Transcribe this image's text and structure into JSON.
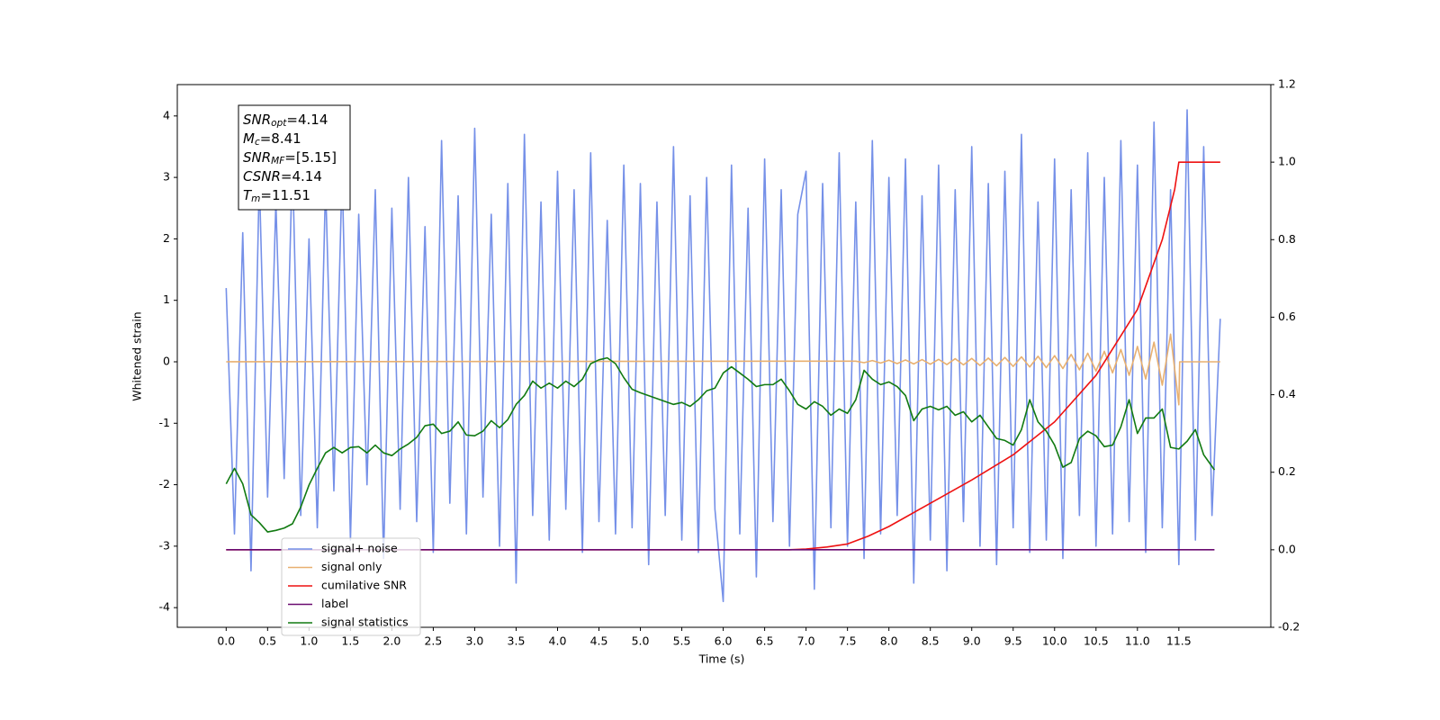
{
  "chart_data": {
    "type": "line",
    "xlabel": "Time (s)",
    "ylabel": "Whitened strain",
    "xlim": [
      -0.59,
      12.61
    ],
    "ylim": [
      -4.32,
      4.51
    ],
    "y2lim": [
      -0.2,
      1.2
    ],
    "xticks": [
      {
        "value": 0,
        "label": "0.0"
      },
      0.5,
      {
        "value": 1,
        "label": "1.0"
      },
      1.5,
      {
        "value": 2,
        "label": "2.0"
      },
      2.5,
      {
        "value": 3,
        "label": "3.0"
      },
      3.5,
      {
        "value": 4,
        "label": "4.0"
      },
      4.5,
      {
        "value": 5,
        "label": "5.0"
      },
      5.5,
      {
        "value": 6,
        "label": "6.0"
      },
      6.5,
      {
        "value": 7,
        "label": "7.0"
      },
      7.5,
      {
        "value": 8,
        "label": "8.0"
      },
      8.5,
      {
        "value": 9,
        "label": "9.0"
      },
      9.5,
      {
        "value": 10,
        "label": "10.0"
      },
      10.5,
      {
        "value": 11,
        "label": "11.0"
      },
      11.5
    ],
    "yticks": [
      -4,
      -3,
      -2,
      -1,
      0,
      1,
      2,
      3,
      4
    ],
    "y2ticks": [
      -0.2,
      {
        "value": 0,
        "label": "0.0"
      },
      0.2,
      0.4,
      0.6,
      0.8,
      {
        "value": 1,
        "label": "1.0"
      },
      1.2
    ],
    "grid": false,
    "legend": "lower left",
    "annotations": [
      {
        "symbol": "SNR",
        "sub": "opt",
        "text": "=4.14"
      },
      {
        "symbol": "M",
        "sub": "c",
        "text": "=8.41"
      },
      {
        "symbol": "SNR",
        "sub": "MF",
        "text": "=[5.15]"
      },
      {
        "symbol": "CSNR",
        "text": "=4.14"
      },
      {
        "symbol": "T",
        "sub": "m",
        "text": "=11.51"
      }
    ],
    "series": [
      {
        "name": "signal+ noise",
        "color": "#7590e8",
        "x": [
          0,
          0.1,
          0.2,
          0.3,
          0.4,
          0.5,
          0.6,
          0.7,
          0.8,
          0.9,
          1,
          1.1,
          1.2,
          1.3,
          1.4,
          1.5,
          1.6,
          1.7,
          1.8,
          1.9,
          2,
          2.1,
          2.2,
          2.3,
          2.4,
          2.5,
          2.6,
          2.7,
          2.8,
          2.9,
          3,
          3.1,
          3.2,
          3.3,
          3.4,
          3.5,
          3.6,
          3.7,
          3.8,
          3.9,
          4,
          4.1,
          4.2,
          4.3,
          4.4,
          4.5,
          4.6,
          4.7,
          4.8,
          4.9,
          5,
          5.1,
          5.2,
          5.3,
          5.4,
          5.5,
          5.6,
          5.7,
          5.8,
          5.9,
          6,
          6.1,
          6.2,
          6.3,
          6.4,
          6.5,
          6.6,
          6.7,
          6.8,
          6.9,
          7,
          7.1,
          7.2,
          7.3,
          7.4,
          7.5,
          7.6,
          7.7,
          7.8,
          7.9,
          8,
          8.1,
          8.2,
          8.3,
          8.4,
          8.5,
          8.6,
          8.7,
          8.8,
          8.9,
          9,
          9.1,
          9.2,
          9.3,
          9.4,
          9.5,
          9.6,
          9.7,
          9.8,
          9.9,
          10,
          10.1,
          10.2,
          10.3,
          10.4,
          10.5,
          10.6,
          10.7,
          10.8,
          10.9,
          11,
          11.1,
          11.2,
          11.3,
          11.4,
          11.5,
          11.6,
          11.7,
          11.8,
          11.9,
          12
        ],
        "values": [
          1.2,
          -2.8,
          2.1,
          -3.4,
          3.0,
          -2.2,
          2.6,
          -1.9,
          3.3,
          -2.5,
          2.0,
          -2.7,
          2.9,
          -2.1,
          3.1,
          -2.9,
          2.4,
          -2.0,
          2.8,
          -3.2,
          2.5,
          -2.4,
          3.0,
          -2.6,
          2.2,
          -3.1,
          3.6,
          -2.3,
          2.7,
          -2.8,
          3.8,
          -2.2,
          2.4,
          -3.0,
          2.9,
          -3.6,
          3.7,
          -2.5,
          2.6,
          -2.9,
          3.1,
          -2.4,
          2.8,
          -3.1,
          3.4,
          -2.6,
          2.3,
          -2.8,
          3.2,
          -2.7,
          2.9,
          -3.3,
          2.6,
          -2.5,
          3.5,
          -2.9,
          2.7,
          -3.1,
          3.0,
          -2.4,
          -3.9,
          3.2,
          -2.8,
          2.5,
          -3.5,
          3.3,
          -2.6,
          2.8,
          -3.0,
          2.4,
          3.1,
          -3.7,
          2.9,
          -2.7,
          3.4,
          -3.0,
          2.6,
          -3.2,
          3.6,
          -2.8,
          3.0,
          -2.5,
          3.3,
          -3.6,
          2.7,
          -2.9,
          3.2,
          -3.4,
          2.8,
          -2.6,
          3.5,
          -3.0,
          2.9,
          -3.3,
          3.1,
          -2.7,
          3.7,
          -3.1,
          2.6,
          -2.9,
          3.3,
          -3.2,
          2.8,
          -2.5,
          3.4,
          -3.0,
          3.0,
          -2.8,
          3.6,
          -2.6,
          3.2,
          -3.1,
          3.9,
          -2.7,
          2.8,
          -3.3,
          4.1,
          -2.9,
          3.5,
          -2.5,
          0.7
        ]
      },
      {
        "name": "signal only",
        "color": "#e8b070",
        "x": [
          0,
          7.6,
          7.7,
          7.8,
          7.9,
          8,
          8.1,
          8.2,
          8.3,
          8.4,
          8.5,
          8.6,
          8.7,
          8.8,
          8.9,
          9,
          9.1,
          9.2,
          9.3,
          9.4,
          9.5,
          9.6,
          9.7,
          9.8,
          9.9,
          10,
          10.1,
          10.2,
          10.3,
          10.4,
          10.5,
          10.6,
          10.7,
          10.8,
          10.9,
          11,
          11.1,
          11.2,
          11.3,
          11.4,
          11.5,
          11.51,
          12
        ],
        "values": [
          0,
          0.01,
          -0.015,
          0.02,
          -0.02,
          0.025,
          -0.03,
          0.03,
          -0.035,
          0.035,
          -0.04,
          0.04,
          -0.045,
          0.05,
          -0.05,
          0.055,
          -0.06,
          0.06,
          -0.065,
          0.07,
          -0.075,
          0.08,
          -0.085,
          0.09,
          -0.095,
          0.1,
          -0.11,
          0.12,
          -0.13,
          0.14,
          -0.15,
          0.17,
          -0.18,
          0.2,
          -0.22,
          0.25,
          -0.28,
          0.32,
          -0.38,
          0.45,
          -0.7,
          0,
          0
        ]
      },
      {
        "name": "cumilative SNR",
        "color": "#ee1111",
        "axis": "y2",
        "x": [
          0,
          6.8,
          7,
          7.25,
          7.5,
          7.75,
          8,
          8.5,
          9,
          9.5,
          10,
          10.5,
          11,
          11.3,
          11.45,
          11.5,
          12
        ],
        "values": [
          0,
          0,
          0.002,
          0.007,
          0.015,
          0.035,
          0.06,
          0.12,
          0.18,
          0.245,
          0.33,
          0.45,
          0.62,
          0.8,
          0.93,
          1.0,
          1.0
        ]
      },
      {
        "name": "label",
        "color": "#6a0a70",
        "axis": "y2",
        "x": [
          0,
          11.93
        ],
        "values": [
          0,
          0
        ]
      },
      {
        "name": "signal statistics",
        "color": "#117a11",
        "axis": "y2",
        "x": [
          0,
          0.1,
          0.2,
          0.3,
          0.4,
          0.5,
          0.6,
          0.7,
          0.8,
          0.9,
          1,
          1.1,
          1.2,
          1.3,
          1.4,
          1.5,
          1.6,
          1.7,
          1.8,
          1.9,
          2,
          2.1,
          2.2,
          2.3,
          2.4,
          2.5,
          2.6,
          2.7,
          2.8,
          2.9,
          3,
          3.1,
          3.2,
          3.3,
          3.4,
          3.5,
          3.6,
          3.7,
          3.8,
          3.9,
          4,
          4.1,
          4.2,
          4.3,
          4.4,
          4.5,
          4.6,
          4.7,
          4.8,
          4.9,
          5,
          5.2,
          5.4,
          5.5,
          5.6,
          5.7,
          5.8,
          5.9,
          6,
          6.1,
          6.2,
          6.3,
          6.4,
          6.5,
          6.6,
          6.7,
          6.8,
          6.9,
          7,
          7.1,
          7.2,
          7.3,
          7.4,
          7.5,
          7.6,
          7.7,
          7.8,
          7.9,
          8,
          8.1,
          8.2,
          8.3,
          8.4,
          8.5,
          8.6,
          8.7,
          8.8,
          8.9,
          9,
          9.1,
          9.2,
          9.3,
          9.4,
          9.5,
          9.6,
          9.7,
          9.8,
          9.9,
          10,
          10.1,
          10.2,
          10.3,
          10.4,
          10.5,
          10.6,
          10.7,
          10.8,
          10.9,
          11,
          11.1,
          11.2,
          11.3,
          11.4,
          11.5,
          11.6,
          11.7,
          11.8,
          11.93
        ],
        "values": [
          0.17,
          0.21,
          0.17,
          0.09,
          0.07,
          0.046,
          0.05,
          0.056,
          0.067,
          0.11,
          0.167,
          0.21,
          0.25,
          0.264,
          0.25,
          0.264,
          0.266,
          0.25,
          0.27,
          0.25,
          0.243,
          0.26,
          0.273,
          0.29,
          0.32,
          0.324,
          0.3,
          0.306,
          0.33,
          0.296,
          0.294,
          0.306,
          0.333,
          0.315,
          0.336,
          0.375,
          0.398,
          0.435,
          0.417,
          0.43,
          0.417,
          0.435,
          0.421,
          0.44,
          0.48,
          0.49,
          0.495,
          0.48,
          0.444,
          0.414,
          0.405,
          0.39,
          0.375,
          0.38,
          0.37,
          0.387,
          0.41,
          0.417,
          0.456,
          0.472,
          0.456,
          0.44,
          0.421,
          0.426,
          0.426,
          0.44,
          0.41,
          0.375,
          0.363,
          0.382,
          0.37,
          0.347,
          0.363,
          0.352,
          0.387,
          0.463,
          0.44,
          0.426,
          0.433,
          0.421,
          0.398,
          0.333,
          0.363,
          0.37,
          0.361,
          0.37,
          0.347,
          0.356,
          0.33,
          0.347,
          0.317,
          0.287,
          0.282,
          0.27,
          0.31,
          0.387,
          0.33,
          0.306,
          0.27,
          0.213,
          0.225,
          0.287,
          0.306,
          0.294,
          0.266,
          0.27,
          0.317,
          0.387,
          0.3,
          0.34,
          0.34,
          0.363,
          0.264,
          0.26,
          0.28,
          0.31,
          0.245,
          0.206
        ]
      }
    ]
  }
}
